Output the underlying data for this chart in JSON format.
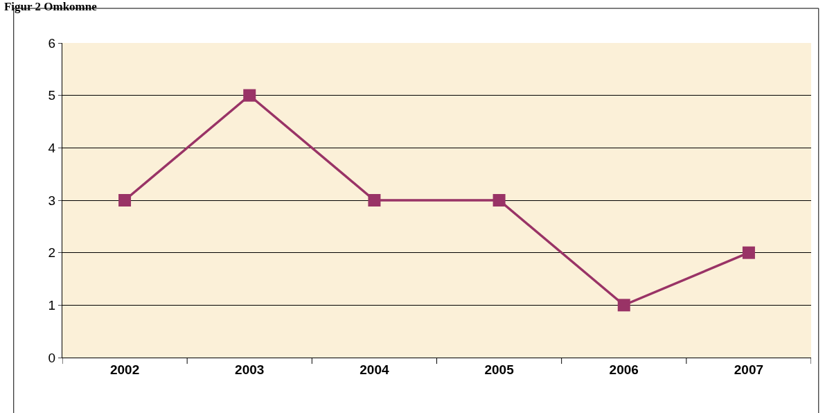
{
  "chart_data": {
    "type": "line",
    "title": "Figur 2 Omkomne",
    "categories": [
      "2002",
      "2003",
      "2004",
      "2005",
      "2006",
      "2007"
    ],
    "series": [
      {
        "color": "#993366",
        "values": [
          3,
          5,
          3,
          3,
          1,
          2
        ]
      }
    ],
    "ylim": [
      0,
      6
    ],
    "yticks": [
      0,
      1,
      2,
      3,
      4,
      5,
      6
    ],
    "grid": "y",
    "marker": "square",
    "line_style": "solid"
  }
}
